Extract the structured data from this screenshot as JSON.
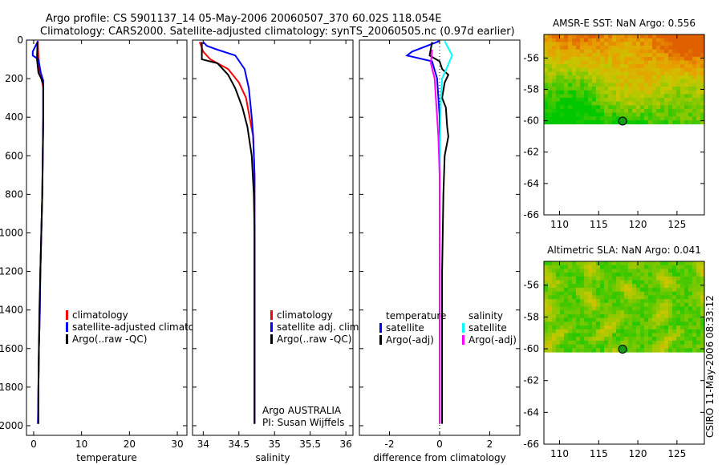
{
  "header": {
    "line1": "Argo profile: CS 5901137_14 05-May-2006 20060507_370 60.02S 118.054E",
    "line2": "Climatology: CARS2000. Satellite-adjusted climatology: synTS_20060505.nc (0.97d earlier)"
  },
  "side_note": "CSIRO 11-May-2006 08:33:12",
  "chart_data": [
    {
      "type": "line",
      "name": "temperature-profile",
      "xlabel": "temperature",
      "ylabel": "",
      "xlim": [
        -1.5,
        32
      ],
      "ylim": [
        2050,
        0
      ],
      "xticks": [
        0,
        10,
        20,
        30
      ],
      "yticks": [
        0,
        200,
        400,
        600,
        800,
        1000,
        1200,
        1400,
        1600,
        1800,
        2000
      ],
      "legend": [
        "climatology",
        "satellite-adjusted climatology",
        "Argo(..raw -QC)"
      ],
      "legend_position": "lower-right",
      "series": [
        {
          "name": "climatology",
          "color": "#ff0000",
          "points": [
            [
              0.9,
              5
            ],
            [
              0.9,
              30
            ],
            [
              1.0,
              80
            ],
            [
              1.2,
              150
            ],
            [
              1.5,
              190
            ],
            [
              1.8,
              220
            ],
            [
              2.0,
              250
            ],
            [
              2.0,
              400
            ],
            [
              1.9,
              600
            ],
            [
              1.8,
              800
            ],
            [
              1.6,
              1000
            ],
            [
              1.4,
              1200
            ],
            [
              1.3,
              1400
            ],
            [
              1.1,
              1600
            ],
            [
              1.0,
              1800
            ],
            [
              0.9,
              1990
            ]
          ]
        },
        {
          "name": "satellite-adjusted climatology",
          "color": "#0000ff",
          "points": [
            [
              0.9,
              5
            ],
            [
              -0.2,
              60
            ],
            [
              -0.2,
              80
            ],
            [
              1.0,
              100
            ],
            [
              1.5,
              170
            ],
            [
              2.0,
              210
            ],
            [
              2.0,
              400
            ],
            [
              1.9,
              600
            ],
            [
              1.8,
              800
            ],
            [
              1.6,
              1000
            ],
            [
              1.4,
              1200
            ],
            [
              1.3,
              1400
            ],
            [
              1.1,
              1600
            ],
            [
              1.0,
              1800
            ],
            [
              0.9,
              1990
            ]
          ]
        },
        {
          "name": "Argo(..raw -QC)",
          "color": "#000000",
          "points": [
            [
              0.8,
              10
            ],
            [
              0.7,
              100
            ],
            [
              1.0,
              170
            ],
            [
              1.6,
              200
            ],
            [
              2.0,
              230
            ],
            [
              2.0,
              400
            ],
            [
              1.9,
              600
            ],
            [
              1.8,
              800
            ],
            [
              1.6,
              1000
            ],
            [
              1.4,
              1200
            ],
            [
              1.2,
              1400
            ],
            [
              1.1,
              1600
            ],
            [
              1.0,
              1800
            ],
            [
              1.0,
              1990
            ]
          ]
        }
      ]
    },
    {
      "type": "line",
      "name": "salinity-profile",
      "xlabel": "salinity",
      "ylabel": "",
      "xlim": [
        33.85,
        36.1
      ],
      "ylim": [
        2050,
        0
      ],
      "xticks": [
        34,
        34.5,
        35,
        35.5,
        36
      ],
      "yticks": [],
      "legend": [
        "climatology",
        "satellite adj. clim.",
        "Argo(..raw -QC)"
      ],
      "legend_position": "lower-right",
      "annotations": [
        "Argo AUSTRALIA",
        "PI: Susan Wijffels"
      ],
      "series": [
        {
          "name": "climatology",
          "color": "#ff0000",
          "points": [
            [
              33.95,
              10
            ],
            [
              34.0,
              60
            ],
            [
              34.1,
              100
            ],
            [
              34.35,
              150
            ],
            [
              34.5,
              220
            ],
            [
              34.6,
              300
            ],
            [
              34.65,
              400
            ],
            [
              34.7,
              500
            ],
            [
              34.72,
              700
            ],
            [
              34.72,
              1000
            ],
            [
              34.72,
              1500
            ],
            [
              34.72,
              1990
            ]
          ]
        },
        {
          "name": "satellite adj. clim.",
          "color": "#0000ff",
          "points": [
            [
              34.0,
              10
            ],
            [
              34.05,
              30
            ],
            [
              34.2,
              50
            ],
            [
              34.45,
              80
            ],
            [
              34.58,
              150
            ],
            [
              34.64,
              250
            ],
            [
              34.68,
              400
            ],
            [
              34.7,
              500
            ],
            [
              34.72,
              700
            ],
            [
              34.72,
              1000
            ],
            [
              34.72,
              1500
            ],
            [
              34.72,
              1990
            ]
          ]
        },
        {
          "name": "Argo(..raw -QC)",
          "color": "#000000",
          "points": [
            [
              33.98,
              10
            ],
            [
              33.98,
              100
            ],
            [
              34.2,
              120
            ],
            [
              34.35,
              180
            ],
            [
              34.45,
              250
            ],
            [
              34.55,
              350
            ],
            [
              34.62,
              450
            ],
            [
              34.68,
              600
            ],
            [
              34.71,
              800
            ],
            [
              34.72,
              1000
            ],
            [
              34.72,
              1500
            ],
            [
              34.72,
              1990
            ]
          ]
        }
      ]
    },
    {
      "type": "line",
      "name": "difference-profile",
      "xlabel": "difference from climatology",
      "ylabel": "",
      "xlim": [
        -3.2,
        3.2
      ],
      "ylim": [
        2050,
        0
      ],
      "xticks": [
        -2,
        0,
        2
      ],
      "yticks": [],
      "legend": [
        "temperature",
        "satellite",
        "Argo(-adj)",
        "salinity",
        "satellite",
        "Argo(-adj)"
      ],
      "legend_position": "lower-right",
      "series": [
        {
          "name": "temperature satellite",
          "color": "#0000ff",
          "points": [
            [
              0,
              5
            ],
            [
              -1.1,
              60
            ],
            [
              -1.3,
              80
            ],
            [
              -0.3,
              110
            ],
            [
              -0.1,
              200
            ],
            [
              0,
              400
            ],
            [
              0,
              800
            ],
            [
              0,
              1200
            ],
            [
              0,
              1600
            ],
            [
              0,
              1990
            ]
          ]
        },
        {
          "name": "temperature Argo(-adj)",
          "color": "#000000",
          "points": [
            [
              -0.3,
              10
            ],
            [
              -0.4,
              80
            ],
            [
              0,
              110
            ],
            [
              0.1,
              150
            ],
            [
              0.35,
              180
            ],
            [
              0.2,
              220
            ],
            [
              0.1,
              300
            ],
            [
              0.25,
              350
            ],
            [
              0.3,
              450
            ],
            [
              0.35,
              500
            ],
            [
              0.2,
              600
            ],
            [
              0.15,
              800
            ],
            [
              0.1,
              1200
            ],
            [
              0.1,
              1600
            ],
            [
              0.1,
              1990
            ]
          ]
        },
        {
          "name": "salinity satellite",
          "color": "#00ffff",
          "points": [
            [
              0.2,
              5
            ],
            [
              0.5,
              80
            ],
            [
              0.3,
              140
            ],
            [
              0.1,
              200
            ],
            [
              0.05,
              300
            ],
            [
              0.02,
              500
            ],
            [
              0,
              800
            ],
            [
              0,
              1200
            ],
            [
              0,
              1600
            ],
            [
              0,
              1990
            ]
          ]
        },
        {
          "name": "salinity Argo(-adj)",
          "color": "#ff00ff",
          "points": [
            [
              -0.3,
              50
            ],
            [
              -0.35,
              120
            ],
            [
              -0.2,
              200
            ],
            [
              -0.15,
              300
            ],
            [
              -0.1,
              400
            ],
            [
              -0.05,
              500
            ],
            [
              0,
              700
            ],
            [
              0,
              1000
            ],
            [
              0,
              1500
            ],
            [
              0,
              1990
            ]
          ]
        }
      ]
    },
    {
      "type": "heatmap",
      "name": "amsr-sst-map",
      "title": "AMSR-E SST: NaN Argo: 0.556",
      "xlabel": "",
      "ylabel": "",
      "xlim": [
        108,
        128.5
      ],
      "ylim": [
        -66,
        -54.5
      ],
      "xticks": [
        110,
        115,
        120,
        125
      ],
      "yticks": [
        -56,
        -58,
        -60,
        -62,
        -64,
        -66
      ],
      "data_extent_lat": [
        -60.2,
        -54.5
      ],
      "argo_location": {
        "lon": 118.054,
        "lat": -60.02
      },
      "colormap": [
        "#00c800",
        "#78c800",
        "#c8c800",
        "#e8a000",
        "#e06000"
      ]
    },
    {
      "type": "heatmap",
      "name": "altimetric-sla-map",
      "title": "Altimetric SLA: NaN Argo: 0.041",
      "xlabel": "",
      "ylabel": "",
      "xlim": [
        108,
        128.5
      ],
      "ylim": [
        -66,
        -54.5
      ],
      "xticks": [
        110,
        115,
        120,
        125
      ],
      "yticks": [
        -56,
        -58,
        -60,
        -62,
        -64,
        -66
      ],
      "data_extent_lat": [
        -60.2,
        -54.5
      ],
      "argo_location": {
        "lon": 118.054,
        "lat": -60.02
      },
      "colormap": [
        "#00c800",
        "#78c800",
        "#c8c800",
        "#e8a000",
        "#e06000"
      ]
    }
  ]
}
